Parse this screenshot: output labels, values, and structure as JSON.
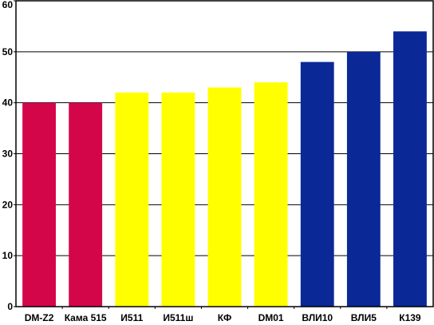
{
  "chart_data": {
    "type": "bar",
    "title": "",
    "xlabel": "",
    "ylabel": "",
    "ylim": [
      0,
      60
    ],
    "yticks": [
      0,
      10,
      20,
      30,
      40,
      50,
      60
    ],
    "grid": "horizontal",
    "categories": [
      "DM-Z2",
      "Кама 515",
      "И511",
      "И511ш",
      "КФ",
      "DM01",
      "ВЛИ10",
      "ВЛИ5",
      "К139"
    ],
    "values": [
      40,
      40,
      42,
      42,
      43,
      44,
      48,
      50,
      54
    ],
    "bar_colors": [
      "#d4064a",
      "#d4064a",
      "#ffff00",
      "#ffff00",
      "#ffff00",
      "#ffff00",
      "#0a2896",
      "#0a2896",
      "#0a2896"
    ],
    "border_color": "#000000",
    "grid_color": "#000000"
  }
}
